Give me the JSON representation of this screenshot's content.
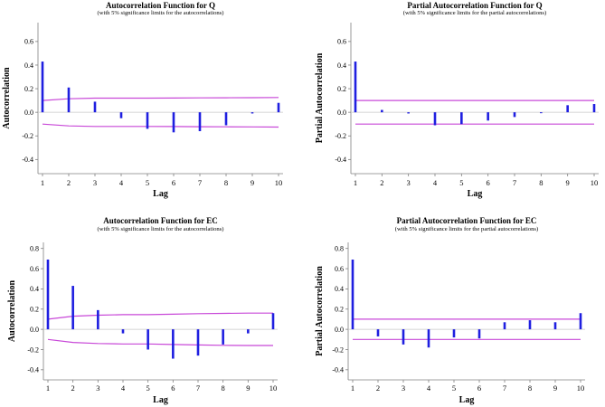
{
  "colors": {
    "bar": "#1f1fe0",
    "limit": "#c848d8",
    "axis": "#808080",
    "zero": "#c8c8c8"
  },
  "chart_data": [
    {
      "type": "bar",
      "title": "Autocorrelation Function for Q",
      "subtitle": "(with 5% significance limits for the autocorrelations)",
      "xlabel": "Lag",
      "ylabel": "Autocorrelation",
      "categories": [
        "1",
        "2",
        "3",
        "4",
        "5",
        "6",
        "7",
        "8",
        "9",
        "10"
      ],
      "values": [
        0.43,
        0.21,
        0.09,
        -0.05,
        -0.14,
        -0.17,
        -0.16,
        -0.11,
        -0.01,
        0.08
      ],
      "upper_limit": [
        0.1,
        0.115,
        0.12,
        0.12,
        0.12,
        0.121,
        0.122,
        0.123,
        0.124,
        0.125
      ],
      "lower_limit": [
        -0.1,
        -0.115,
        -0.12,
        -0.12,
        -0.12,
        -0.121,
        -0.122,
        -0.123,
        -0.124,
        -0.125
      ],
      "yticks": [
        -0.4,
        -0.2,
        0.0,
        0.2,
        0.4,
        0.6
      ],
      "ytick_labels": [
        "-0.4",
        "-0.2",
        "0.0",
        "0.2",
        "0.4",
        "0.6"
      ],
      "ylim": [
        -0.52,
        0.76
      ]
    },
    {
      "type": "bar",
      "title": "Partial Autocorrelation Function for Q",
      "subtitle": "(with 5% significance limits for the partial autocorrelations)",
      "xlabel": "Lag",
      "ylabel": "Partial Autocorrelation",
      "categories": [
        "1",
        "2",
        "3",
        "4",
        "5",
        "6",
        "7",
        "8",
        "9",
        "10"
      ],
      "values": [
        0.43,
        0.02,
        -0.01,
        -0.11,
        -0.1,
        -0.07,
        -0.04,
        0.0,
        0.06,
        0.07
      ],
      "upper_limit": [
        0.1,
        0.1,
        0.1,
        0.1,
        0.1,
        0.1,
        0.1,
        0.1,
        0.1,
        0.1
      ],
      "lower_limit": [
        -0.1,
        -0.1,
        -0.1,
        -0.1,
        -0.1,
        -0.1,
        -0.1,
        -0.1,
        -0.1,
        -0.1
      ],
      "yticks": [
        -0.4,
        -0.2,
        0.0,
        0.2,
        0.4,
        0.6
      ],
      "ytick_labels": [
        "-0.4",
        "-0.2",
        "0.0",
        "0.2",
        "0.4",
        "0.6"
      ],
      "ylim": [
        -0.52,
        0.76
      ]
    },
    {
      "type": "bar",
      "title": "Autocorrelation Function for EC",
      "subtitle": "(with 5% significance limits for the autocorrelations)",
      "xlabel": "Lag",
      "ylabel": "Autocorrelation",
      "categories": [
        "1",
        "2",
        "3",
        "4",
        "5",
        "6",
        "7",
        "8",
        "9",
        "10"
      ],
      "values": [
        0.69,
        0.43,
        0.19,
        -0.04,
        -0.2,
        -0.29,
        -0.26,
        -0.15,
        -0.04,
        0.16
      ],
      "upper_limit": [
        0.1,
        0.13,
        0.14,
        0.145,
        0.145,
        0.15,
        0.155,
        0.158,
        0.16,
        0.16
      ],
      "lower_limit": [
        -0.1,
        -0.13,
        -0.14,
        -0.145,
        -0.145,
        -0.15,
        -0.155,
        -0.158,
        -0.16,
        -0.16
      ],
      "yticks": [
        -0.4,
        -0.2,
        0.0,
        0.2,
        0.4,
        0.6,
        0.8
      ],
      "ytick_labels": [
        "-0.4",
        "-0.2",
        "0.0",
        "0.2",
        "0.4",
        "0.6",
        "0.8"
      ],
      "ylim": [
        -0.5,
        0.86
      ]
    },
    {
      "type": "bar",
      "title": "Partial Autocorrelation Function for EC",
      "subtitle": "(with 5% significance limits for the partial autocorrelations)",
      "xlabel": "Lag",
      "ylabel": "Partial Autocorrelation",
      "categories": [
        "1",
        "2",
        "3",
        "4",
        "5",
        "6",
        "7",
        "8",
        "9",
        "10"
      ],
      "values": [
        0.69,
        -0.07,
        -0.15,
        -0.18,
        -0.08,
        -0.09,
        0.07,
        0.09,
        0.07,
        0.16
      ],
      "upper_limit": [
        0.1,
        0.1,
        0.1,
        0.1,
        0.1,
        0.1,
        0.1,
        0.1,
        0.1,
        0.1
      ],
      "lower_limit": [
        -0.1,
        -0.1,
        -0.1,
        -0.1,
        -0.1,
        -0.1,
        -0.1,
        -0.1,
        -0.1,
        -0.1
      ],
      "yticks": [
        -0.4,
        -0.2,
        0.0,
        0.2,
        0.4,
        0.6,
        0.8
      ],
      "ytick_labels": [
        "-0.4",
        "-0.2",
        "0.0",
        "0.2",
        "0.4",
        "0.6",
        "0.8"
      ],
      "ylim": [
        -0.5,
        0.86
      ]
    }
  ]
}
